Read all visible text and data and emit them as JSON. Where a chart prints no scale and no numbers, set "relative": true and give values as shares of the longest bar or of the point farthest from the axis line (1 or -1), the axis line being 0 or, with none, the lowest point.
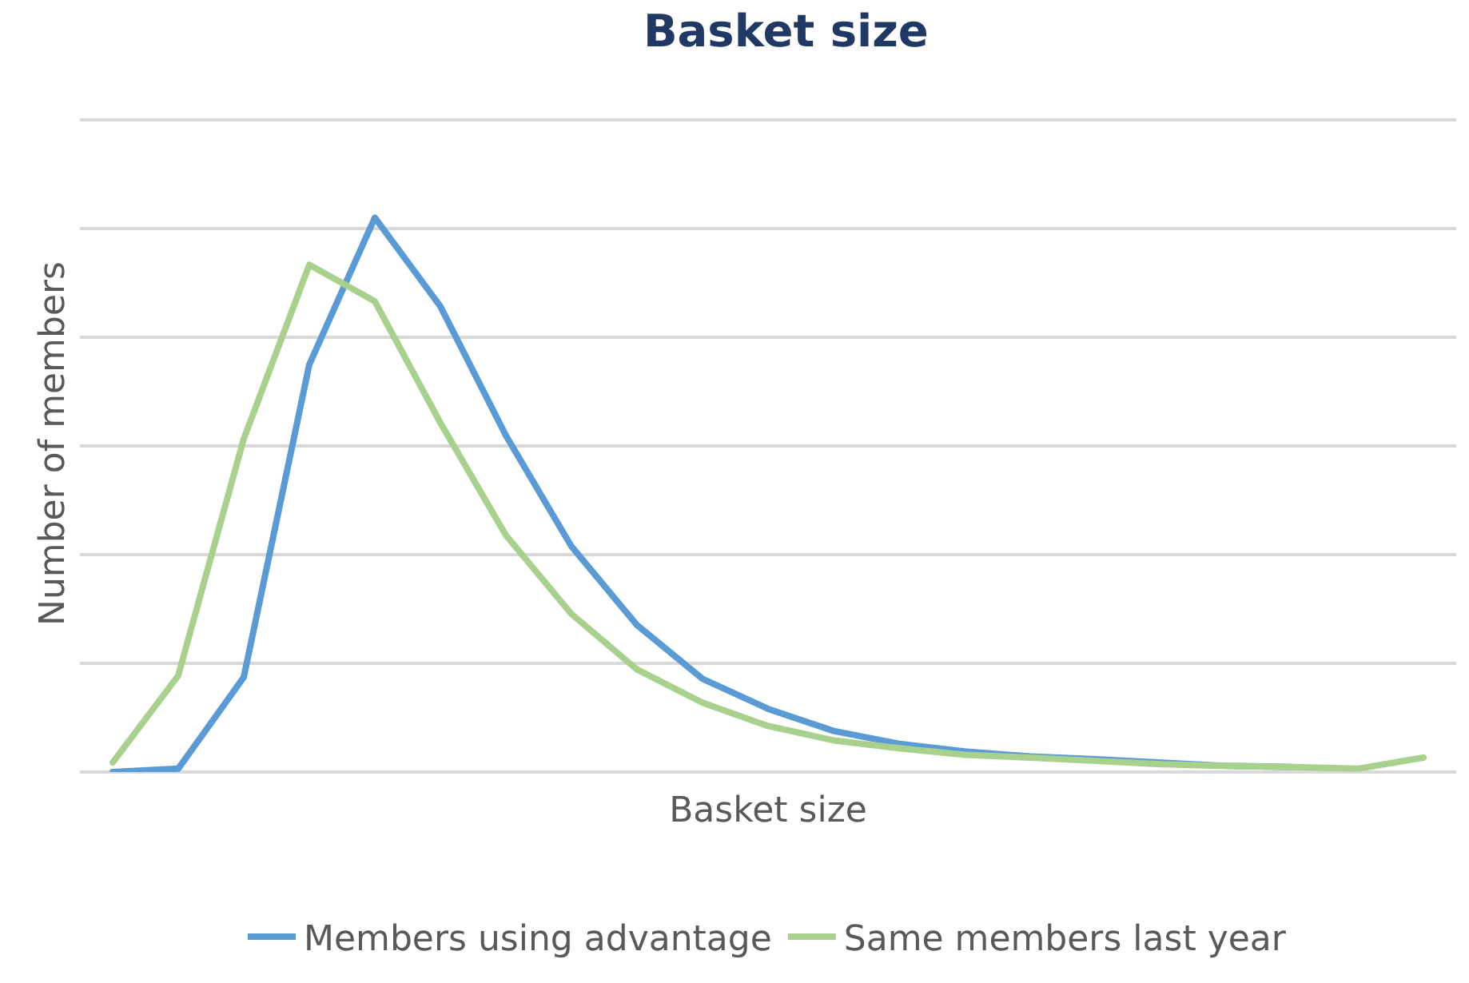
{
  "chart_data": {
    "type": "line",
    "title": "Basket size",
    "xlabel": "Basket size",
    "ylabel": "Number of members",
    "relative": true,
    "categories": [
      null,
      null,
      null,
      null,
      null,
      null,
      null,
      null,
      null,
      null,
      null,
      null,
      null,
      null,
      null,
      null,
      null,
      null,
      null,
      null,
      null
    ],
    "series": [
      {
        "name": "Members using advantage",
        "color": "#5b9bd5",
        "values": [
          0,
          0.006,
          0.171,
          0.735,
          1,
          0.84,
          0.607,
          0.407,
          0.265,
          0.168,
          0.114,
          0.074,
          0.051,
          0.037,
          0.028,
          0.023,
          0.017,
          0.011,
          0.009,
          null,
          null
        ]
      },
      {
        "name": "Same members last year",
        "color": "#a9d18e",
        "values": [
          0.017,
          0.174,
          0.601,
          0.915,
          0.849,
          0.63,
          0.427,
          0.285,
          0.185,
          0.125,
          0.083,
          0.057,
          0.043,
          0.031,
          0.026,
          0.02,
          0.014,
          0.011,
          0.009,
          0.006,
          0.026
        ]
      }
    ],
    "grid": "y",
    "legend": "bottom",
    "marker": "none",
    "line_style": "solid"
  }
}
